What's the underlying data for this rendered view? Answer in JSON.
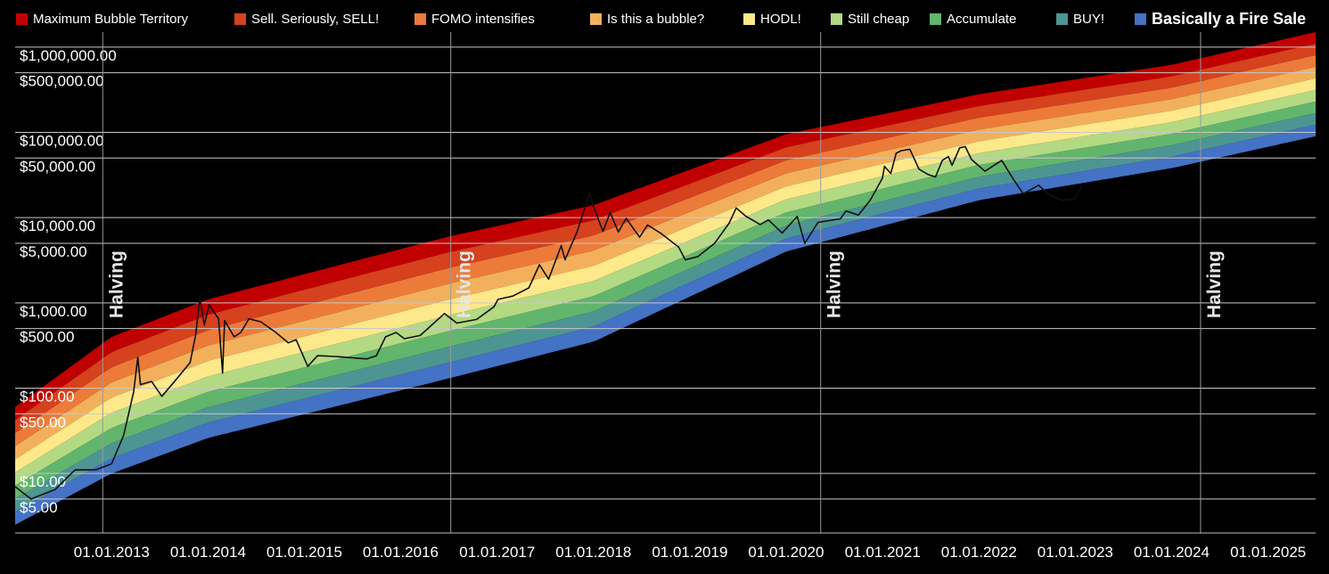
{
  "chart_data": {
    "type": "line",
    "y_scale": "log",
    "ylim": [
      2,
      1500000
    ],
    "xlim": [
      "2012-01-01",
      "2025-06-30"
    ],
    "grid": true,
    "legend_position": "top",
    "y_ticks": [
      {
        "value": 1000000,
        "label": "$1,000,000.00"
      },
      {
        "value": 500000,
        "label": "$500,000.00"
      },
      {
        "value": 100000,
        "label": "$100,000.00"
      },
      {
        "value": 50000,
        "label": "$50,000.00"
      },
      {
        "value": 10000,
        "label": "$10,000.00"
      },
      {
        "value": 5000,
        "label": "$5,000.00"
      },
      {
        "value": 1000,
        "label": "$1,000.00"
      },
      {
        "value": 500,
        "label": "$500.00"
      },
      {
        "value": 100,
        "label": "$100.00"
      },
      {
        "value": 50,
        "label": "$50.00"
      },
      {
        "value": 10,
        "label": "$10.00"
      },
      {
        "value": 5,
        "label": "$5.00"
      }
    ],
    "x_ticks": [
      {
        "date": "2013-01-01",
        "label": "01.01.2013"
      },
      {
        "date": "2014-01-01",
        "label": "01.01.2014"
      },
      {
        "date": "2015-01-01",
        "label": "01.01.2015"
      },
      {
        "date": "2016-01-01",
        "label": "01.01.2016"
      },
      {
        "date": "2017-01-01",
        "label": "01.01.2017"
      },
      {
        "date": "2018-01-01",
        "label": "01.01.2018"
      },
      {
        "date": "2019-01-01",
        "label": "01.01.2019"
      },
      {
        "date": "2020-01-01",
        "label": "01.01.2020"
      },
      {
        "date": "2021-01-01",
        "label": "01.01.2021"
      },
      {
        "date": "2022-01-01",
        "label": "01.01.2022"
      },
      {
        "date": "2023-01-01",
        "label": "01.01.2023"
      },
      {
        "date": "2024-01-01",
        "label": "01.01.2024"
      },
      {
        "date": "2025-01-01",
        "label": "01.01.2025"
      }
    ],
    "halvings": [
      {
        "date": "2012-11-28",
        "label": "Halving"
      },
      {
        "date": "2016-07-09",
        "label": "Halving"
      },
      {
        "date": "2020-05-11",
        "label": "Halving"
      },
      {
        "date": "2024-04-20",
        "label": "Halving"
      }
    ],
    "bands": [
      {
        "name": "Maximum Bubble Territory",
        "color": "#c00000"
      },
      {
        "name": "Sell. Seriously, SELL!",
        "color": "#d6411e"
      },
      {
        "name": "FOMO intensifies",
        "color": "#ec7b3a"
      },
      {
        "name": "Is this a bubble?",
        "color": "#f3b05c"
      },
      {
        "name": "HODL!",
        "color": "#fde88a"
      },
      {
        "name": "Still cheap",
        "color": "#b3d983"
      },
      {
        "name": "Accumulate",
        "color": "#62b56c"
      },
      {
        "name": "BUY!",
        "color": "#4d9593"
      },
      {
        "name": "Basically a Fire Sale",
        "color": "#4472c4"
      }
    ],
    "band_edges": [
      {
        "date": "2012-01-01",
        "top": 60,
        "bottom": 2.5
      },
      {
        "date": "2013-01-01",
        "top": 400,
        "bottom": 10
      },
      {
        "date": "2014-01-01",
        "top": 1100,
        "bottom": 26
      },
      {
        "date": "2016-07-01",
        "top": 6000,
        "bottom": 130
      },
      {
        "date": "2018-01-01",
        "top": 14000,
        "bottom": 350
      },
      {
        "date": "2020-01-01",
        "top": 95000,
        "bottom": 4000
      },
      {
        "date": "2022-01-01",
        "top": 280000,
        "bottom": 16000
      },
      {
        "date": "2024-01-01",
        "top": 620000,
        "bottom": 38000
      },
      {
        "date": "2025-06-30",
        "top": 1500000,
        "bottom": 90000
      }
    ],
    "price_series": {
      "color": "#111111",
      "points": [
        [
          "2012-01-01",
          7
        ],
        [
          "2012-03-01",
          5
        ],
        [
          "2012-06-01",
          6.5
        ],
        [
          "2012-08-15",
          11
        ],
        [
          "2012-11-01",
          11
        ],
        [
          "2013-01-01",
          13
        ],
        [
          "2013-02-15",
          28
        ],
        [
          "2013-03-25",
          90
        ],
        [
          "2013-04-10",
          230
        ],
        [
          "2013-04-20",
          110
        ],
        [
          "2013-06-01",
          120
        ],
        [
          "2013-07-10",
          80
        ],
        [
          "2013-09-01",
          125
        ],
        [
          "2013-10-25",
          200
        ],
        [
          "2013-11-15",
          420
        ],
        [
          "2013-12-01",
          1150
        ],
        [
          "2013-12-18",
          550
        ],
        [
          "2014-01-05",
          950
        ],
        [
          "2014-02-10",
          650
        ],
        [
          "2014-02-25",
          150
        ],
        [
          "2014-03-05",
          620
        ],
        [
          "2014-04-10",
          400
        ],
        [
          "2014-05-05",
          450
        ],
        [
          "2014-06-05",
          650
        ],
        [
          "2014-07-20",
          600
        ],
        [
          "2014-09-15",
          450
        ],
        [
          "2014-11-01",
          340
        ],
        [
          "2014-12-01",
          370
        ],
        [
          "2015-01-14",
          180
        ],
        [
          "2015-02-20",
          240
        ],
        [
          "2015-05-01",
          235
        ],
        [
          "2015-08-25",
          220
        ],
        [
          "2015-10-01",
          240
        ],
        [
          "2015-11-05",
          400
        ],
        [
          "2015-12-15",
          450
        ],
        [
          "2016-01-15",
          380
        ],
        [
          "2016-03-15",
          415
        ],
        [
          "2016-06-15",
          750
        ],
        [
          "2016-08-01",
          580
        ],
        [
          "2016-10-15",
          640
        ],
        [
          "2016-12-20",
          900
        ],
        [
          "2017-01-04",
          1100
        ],
        [
          "2017-03-01",
          1200
        ],
        [
          "2017-05-01",
          1500
        ],
        [
          "2017-06-10",
          2800
        ],
        [
          "2017-07-15",
          1900
        ],
        [
          "2017-09-01",
          4700
        ],
        [
          "2017-09-15",
          3200
        ],
        [
          "2017-11-01",
          7000
        ],
        [
          "2017-12-17",
          19500
        ],
        [
          "2018-01-01",
          13500
        ],
        [
          "2018-02-06",
          6900
        ],
        [
          "2018-03-05",
          11500
        ],
        [
          "2018-04-05",
          6800
        ],
        [
          "2018-05-05",
          9800
        ],
        [
          "2018-06-25",
          5900
        ],
        [
          "2018-07-25",
          8200
        ],
        [
          "2018-09-15",
          6500
        ],
        [
          "2018-11-20",
          4500
        ],
        [
          "2018-12-15",
          3200
        ],
        [
          "2019-02-01",
          3500
        ],
        [
          "2019-04-05",
          5000
        ],
        [
          "2019-05-30",
          8600
        ],
        [
          "2019-06-26",
          13000
        ],
        [
          "2019-08-01",
          10400
        ],
        [
          "2019-09-25",
          8300
        ],
        [
          "2019-10-26",
          9400
        ],
        [
          "2019-12-17",
          6600
        ],
        [
          "2020-02-12",
          10300
        ],
        [
          "2020-03-12",
          5000
        ],
        [
          "2020-05-01",
          8800
        ],
        [
          "2020-07-25",
          9700
        ],
        [
          "2020-08-15",
          12000
        ],
        [
          "2020-10-01",
          10700
        ],
        [
          "2020-11-15",
          16000
        ],
        [
          "2020-12-31",
          29000
        ],
        [
          "2021-01-08",
          40000
        ],
        [
          "2021-02-01",
          33000
        ],
        [
          "2021-02-21",
          57000
        ],
        [
          "2021-03-13",
          61000
        ],
        [
          "2021-04-14",
          63500
        ],
        [
          "2021-05-19",
          37000
        ],
        [
          "2021-06-22",
          32000
        ],
        [
          "2021-07-20",
          30000
        ],
        [
          "2021-08-15",
          47000
        ],
        [
          "2021-09-07",
          52000
        ],
        [
          "2021-09-21",
          41000
        ],
        [
          "2021-10-20",
          66000
        ],
        [
          "2021-11-10",
          68000
        ],
        [
          "2021-12-04",
          48000
        ],
        [
          "2022-01-24",
          35000
        ],
        [
          "2022-03-28",
          47000
        ],
        [
          "2022-05-12",
          28000
        ],
        [
          "2022-06-18",
          19000
        ],
        [
          "2022-08-15",
          24000
        ],
        [
          "2022-09-20",
          19000
        ],
        [
          "2022-11-09",
          16000
        ],
        [
          "2022-12-30",
          16500
        ],
        [
          "2023-01-25",
          23000
        ]
      ]
    }
  }
}
